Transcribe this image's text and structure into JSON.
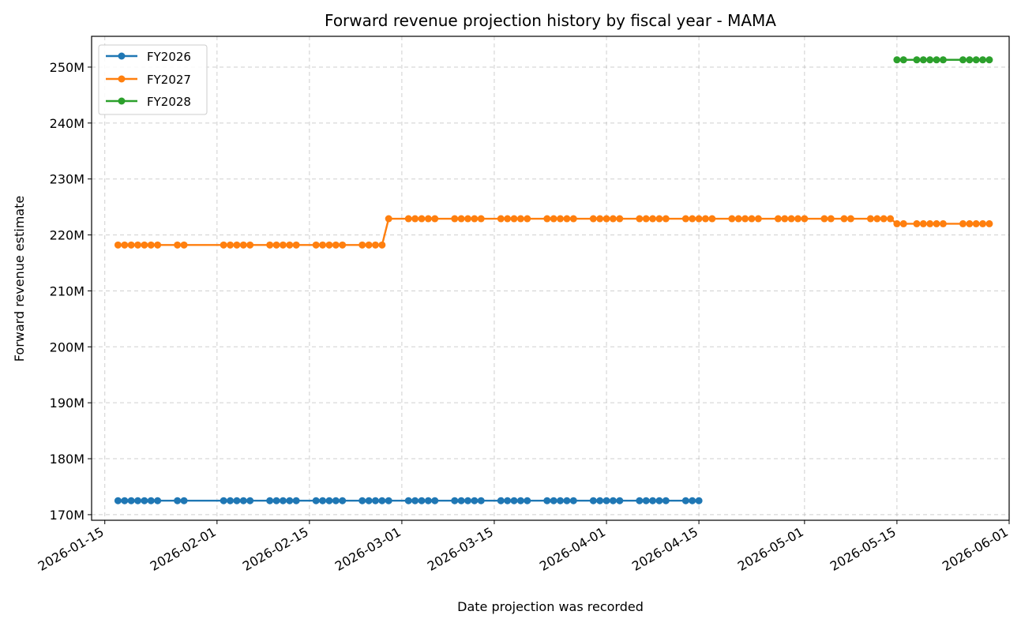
{
  "chart_data": {
    "type": "line",
    "title": "Forward revenue projection history by fiscal year - MAMA",
    "xlabel": "Date projection was recorded",
    "ylabel": "Forward revenue estimate",
    "xlim": [
      "2026-01-13",
      "2026-06-01"
    ],
    "ylim": [
      169,
      255.5
    ],
    "x_ticks": [
      "2026-01-15",
      "2026-02-01",
      "2026-02-15",
      "2026-03-01",
      "2026-03-15",
      "2026-04-01",
      "2026-04-15",
      "2026-05-01",
      "2026-05-15",
      "2026-06-01"
    ],
    "y_ticks": [
      170,
      180,
      190,
      200,
      210,
      220,
      230,
      240,
      250
    ],
    "y_tick_labels": [
      "170M",
      "180M",
      "190M",
      "200M",
      "210M",
      "220M",
      "230M",
      "240M",
      "250M"
    ],
    "grid": true,
    "legend_position": "top-left",
    "series": [
      {
        "name": "FY2026",
        "color": "#1f77b4",
        "x": [
          "2026-01-17",
          "2026-01-18",
          "2026-01-19",
          "2026-01-20",
          "2026-01-21",
          "2026-01-22",
          "2026-01-23",
          "2026-01-26",
          "2026-01-27",
          "2026-02-02",
          "2026-02-03",
          "2026-02-04",
          "2026-02-05",
          "2026-02-06",
          "2026-02-09",
          "2026-02-10",
          "2026-02-11",
          "2026-02-12",
          "2026-02-13",
          "2026-02-16",
          "2026-02-17",
          "2026-02-18",
          "2026-02-19",
          "2026-02-20",
          "2026-02-23",
          "2026-02-24",
          "2026-02-25",
          "2026-02-26",
          "2026-02-27",
          "2026-03-02",
          "2026-03-03",
          "2026-03-04",
          "2026-03-05",
          "2026-03-06",
          "2026-03-09",
          "2026-03-10",
          "2026-03-11",
          "2026-03-12",
          "2026-03-13",
          "2026-03-16",
          "2026-03-17",
          "2026-03-18",
          "2026-03-19",
          "2026-03-20",
          "2026-03-23",
          "2026-03-24",
          "2026-03-25",
          "2026-03-26",
          "2026-03-27",
          "2026-03-30",
          "2026-03-31",
          "2026-04-01",
          "2026-04-02",
          "2026-04-03",
          "2026-04-06",
          "2026-04-07",
          "2026-04-08",
          "2026-04-09",
          "2026-04-10",
          "2026-04-13",
          "2026-04-14",
          "2026-04-15"
        ],
        "y": [
          172.5,
          172.5,
          172.5,
          172.5,
          172.5,
          172.5,
          172.5,
          172.5,
          172.5,
          172.5,
          172.5,
          172.5,
          172.5,
          172.5,
          172.5,
          172.5,
          172.5,
          172.5,
          172.5,
          172.5,
          172.5,
          172.5,
          172.5,
          172.5,
          172.5,
          172.5,
          172.5,
          172.5,
          172.5,
          172.5,
          172.5,
          172.5,
          172.5,
          172.5,
          172.5,
          172.5,
          172.5,
          172.5,
          172.5,
          172.5,
          172.5,
          172.5,
          172.5,
          172.5,
          172.5,
          172.5,
          172.5,
          172.5,
          172.5,
          172.5,
          172.5,
          172.5,
          172.5,
          172.5,
          172.5,
          172.5,
          172.5,
          172.5,
          172.5,
          172.5,
          172.5,
          172.5
        ]
      },
      {
        "name": "FY2027",
        "color": "#ff7f0e",
        "x": [
          "2026-01-17",
          "2026-01-18",
          "2026-01-19",
          "2026-01-20",
          "2026-01-21",
          "2026-01-22",
          "2026-01-23",
          "2026-01-26",
          "2026-01-27",
          "2026-02-02",
          "2026-02-03",
          "2026-02-04",
          "2026-02-05",
          "2026-02-06",
          "2026-02-09",
          "2026-02-10",
          "2026-02-11",
          "2026-02-12",
          "2026-02-13",
          "2026-02-16",
          "2026-02-17",
          "2026-02-18",
          "2026-02-19",
          "2026-02-20",
          "2026-02-23",
          "2026-02-24",
          "2026-02-25",
          "2026-02-26",
          "2026-02-27",
          "2026-03-02",
          "2026-03-03",
          "2026-03-04",
          "2026-03-05",
          "2026-03-06",
          "2026-03-09",
          "2026-03-10",
          "2026-03-11",
          "2026-03-12",
          "2026-03-13",
          "2026-03-16",
          "2026-03-17",
          "2026-03-18",
          "2026-03-19",
          "2026-03-20",
          "2026-03-23",
          "2026-03-24",
          "2026-03-25",
          "2026-03-26",
          "2026-03-27",
          "2026-03-30",
          "2026-03-31",
          "2026-04-01",
          "2026-04-02",
          "2026-04-03",
          "2026-04-06",
          "2026-04-07",
          "2026-04-08",
          "2026-04-09",
          "2026-04-10",
          "2026-04-13",
          "2026-04-14",
          "2026-04-15",
          "2026-04-16",
          "2026-04-17",
          "2026-04-20",
          "2026-04-21",
          "2026-04-22",
          "2026-04-23",
          "2026-04-24",
          "2026-04-27",
          "2026-04-28",
          "2026-04-29",
          "2026-04-30",
          "2026-05-01",
          "2026-05-04",
          "2026-05-05",
          "2026-05-07",
          "2026-05-08",
          "2026-05-11",
          "2026-05-12",
          "2026-05-13",
          "2026-05-14",
          "2026-05-15",
          "2026-05-16",
          "2026-05-18",
          "2026-05-19",
          "2026-05-20",
          "2026-05-21",
          "2026-05-22",
          "2026-05-25",
          "2026-05-26",
          "2026-05-27",
          "2026-05-28",
          "2026-05-29"
        ],
        "y": [
          218.2,
          218.2,
          218.2,
          218.2,
          218.2,
          218.2,
          218.2,
          218.2,
          218.2,
          218.2,
          218.2,
          218.2,
          218.2,
          218.2,
          218.2,
          218.2,
          218.2,
          218.2,
          218.2,
          218.2,
          218.2,
          218.2,
          218.2,
          218.2,
          218.2,
          218.2,
          218.2,
          218.2,
          222.9,
          222.9,
          222.9,
          222.9,
          222.9,
          222.9,
          222.9,
          222.9,
          222.9,
          222.9,
          222.9,
          222.9,
          222.9,
          222.9,
          222.9,
          222.9,
          222.9,
          222.9,
          222.9,
          222.9,
          222.9,
          222.9,
          222.9,
          222.9,
          222.9,
          222.9,
          222.9,
          222.9,
          222.9,
          222.9,
          222.9,
          222.9,
          222.9,
          222.9,
          222.9,
          222.9,
          222.9,
          222.9,
          222.9,
          222.9,
          222.9,
          222.9,
          222.9,
          222.9,
          222.9,
          222.9,
          222.9,
          222.9,
          222.9,
          222.9,
          222.9,
          222.9,
          222.9,
          222.9,
          222.0,
          222.0,
          222.0,
          222.0,
          222.0,
          222.0,
          222.0,
          222.0,
          222.0,
          222.0,
          222.0,
          222.0
        ]
      },
      {
        "name": "FY2028",
        "color": "#2ca02c",
        "x": [
          "2026-05-15",
          "2026-05-16",
          "2026-05-18",
          "2026-05-19",
          "2026-05-20",
          "2026-05-21",
          "2026-05-22",
          "2026-05-25",
          "2026-05-26",
          "2026-05-27",
          "2026-05-28",
          "2026-05-29"
        ],
        "y": [
          251.3,
          251.3,
          251.3,
          251.3,
          251.3,
          251.3,
          251.3,
          251.3,
          251.3,
          251.3,
          251.3,
          251.3
        ]
      }
    ]
  }
}
